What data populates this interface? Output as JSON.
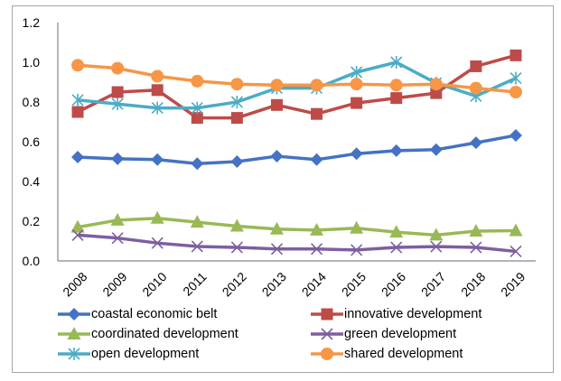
{
  "chart_data": {
    "type": "line",
    "title": "",
    "xlabel": "",
    "ylabel": "",
    "categories": [
      "2008",
      "2009",
      "2010",
      "2011",
      "2012",
      "2013",
      "2014",
      "2015",
      "2016",
      "2017",
      "2018",
      "2019"
    ],
    "ylim": [
      0,
      1.2
    ],
    "yticks": [
      "0.0",
      "0.2",
      "0.4",
      "0.6",
      "0.8",
      "1.0",
      "1.2"
    ],
    "ytick_values": [
      0,
      0.2,
      0.4,
      0.6,
      0.8,
      1.0,
      1.2
    ],
    "grid": false,
    "legend_position": "bottom",
    "series": [
      {
        "name": "coastal economic belt",
        "color": "#4472c4",
        "marker": "diamond",
        "values": [
          0.523,
          0.514,
          0.51,
          0.49,
          0.5,
          0.527,
          0.51,
          0.54,
          0.555,
          0.56,
          0.595,
          0.632
        ]
      },
      {
        "name": "innovative development",
        "color": "#be4b48",
        "marker": "square",
        "values": [
          0.75,
          0.85,
          0.86,
          0.72,
          0.72,
          0.785,
          0.74,
          0.795,
          0.82,
          0.845,
          0.98,
          1.035
        ]
      },
      {
        "name": "coordinated development",
        "color": "#98b954",
        "marker": "triangle",
        "values": [
          0.17,
          0.205,
          0.215,
          0.195,
          0.175,
          0.16,
          0.155,
          0.165,
          0.145,
          0.13,
          0.15,
          0.152
        ]
      },
      {
        "name": "green development",
        "color": "#7d5fa0",
        "marker": "x",
        "values": [
          0.13,
          0.115,
          0.09,
          0.073,
          0.068,
          0.06,
          0.06,
          0.055,
          0.068,
          0.072,
          0.068,
          0.048
        ]
      },
      {
        "name": "open development",
        "color": "#4bacc6",
        "marker": "asterisk",
        "values": [
          0.81,
          0.79,
          0.77,
          0.77,
          0.8,
          0.87,
          0.87,
          0.95,
          1.0,
          0.895,
          0.83,
          0.92
        ]
      },
      {
        "name": "shared development",
        "color": "#f79646",
        "marker": "circle",
        "values": [
          0.985,
          0.97,
          0.93,
          0.905,
          0.89,
          0.885,
          0.885,
          0.89,
          0.885,
          0.89,
          0.87,
          0.85
        ]
      }
    ]
  }
}
